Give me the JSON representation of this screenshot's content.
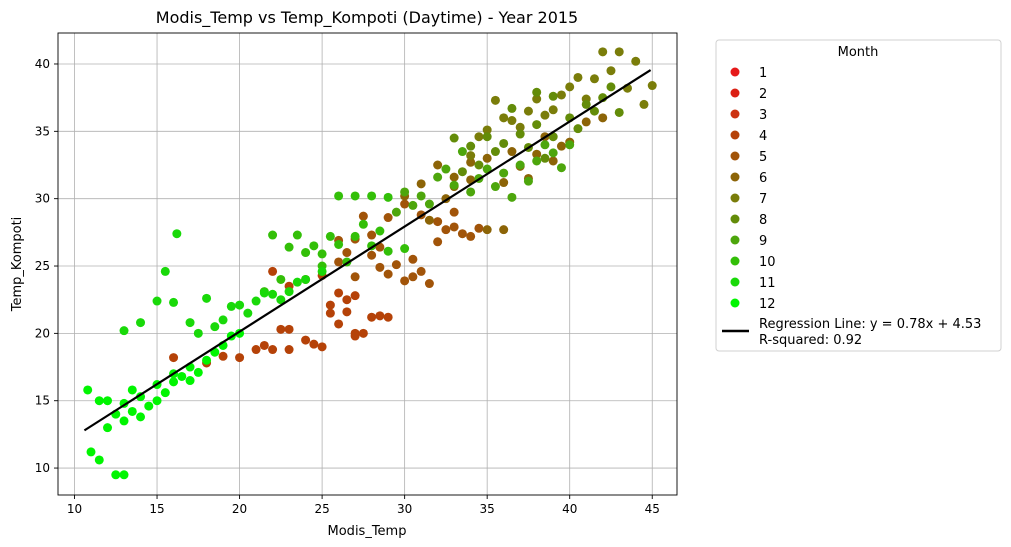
{
  "chart_data": {
    "type": "scatter",
    "title": "Modis_Temp vs Temp_Kompoti (Daytime) - Year 2015",
    "xlabel": "Modis_Temp",
    "ylabel": "Temp_Kompoti",
    "xlim": [
      9,
      46.5
    ],
    "ylim": [
      8,
      42.3
    ],
    "xticks": [
      10,
      15,
      20,
      25,
      30,
      35,
      40,
      45
    ],
    "yticks": [
      10,
      15,
      20,
      25,
      30,
      35,
      40
    ],
    "grid": true,
    "legend": {
      "title": "Month",
      "placement": "outside-right"
    },
    "series": [
      {
        "name": "1",
        "color": "#e6191a",
        "points": []
      },
      {
        "name": "2",
        "color": "#db2014",
        "points": []
      },
      {
        "name": "3",
        "color": "#cc3312",
        "points": []
      },
      {
        "name": "4",
        "color": "#b54208",
        "points": [
          [
            16,
            18.2
          ],
          [
            18,
            17.8
          ],
          [
            19,
            18.3
          ],
          [
            20,
            18.2
          ],
          [
            21,
            18.8
          ],
          [
            21.5,
            19.1
          ],
          [
            22,
            18.8
          ],
          [
            22.5,
            20.3
          ],
          [
            23,
            20.3
          ],
          [
            23,
            18.8
          ],
          [
            24,
            19.5
          ],
          [
            24.5,
            19.2
          ],
          [
            25,
            19.0
          ],
          [
            25.5,
            21.5
          ],
          [
            26,
            20.7
          ],
          [
            26.5,
            21.6
          ],
          [
            27,
            20.0
          ],
          [
            27,
            19.8
          ],
          [
            27.5,
            20.0
          ],
          [
            28,
            21.2
          ],
          [
            28.5,
            21.3
          ],
          [
            29,
            21.2
          ],
          [
            24,
            24.0
          ],
          [
            25,
            24.3
          ],
          [
            26,
            23.0
          ],
          [
            26.5,
            22.5
          ],
          [
            27,
            22.8
          ],
          [
            22,
            24.6
          ],
          [
            23,
            23.5
          ],
          [
            25.5,
            22.1
          ]
        ]
      },
      {
        "name": "5",
        "color": "#a15409",
        "points": [
          [
            26,
            26.9
          ],
          [
            27,
            27.0
          ],
          [
            27.5,
            28.7
          ],
          [
            28,
            27.3
          ],
          [
            28.5,
            24.9
          ],
          [
            29,
            24.4
          ],
          [
            29.5,
            25.1
          ],
          [
            30,
            23.9
          ],
          [
            30.5,
            24.2
          ],
          [
            31,
            24.6
          ],
          [
            31.5,
            23.7
          ],
          [
            32,
            26.8
          ],
          [
            32.5,
            27.7
          ],
          [
            33,
            27.9
          ],
          [
            33.5,
            27.4
          ],
          [
            34,
            27.2
          ],
          [
            34.5,
            27.8
          ],
          [
            27,
            24.2
          ],
          [
            26,
            25.3
          ],
          [
            28.5,
            26.4
          ],
          [
            29,
            28.6
          ],
          [
            30,
            29.6
          ],
          [
            31,
            28.8
          ],
          [
            32,
            28.3
          ],
          [
            33,
            29.0
          ],
          [
            30.5,
            25.5
          ],
          [
            26.5,
            26.0
          ],
          [
            28,
            25.8
          ]
        ]
      },
      {
        "name": "6",
        "color": "#8c6407",
        "points": [
          [
            30,
            30.2
          ],
          [
            31,
            31.1
          ],
          [
            32,
            32.5
          ],
          [
            33,
            31.6
          ],
          [
            34,
            32.7
          ],
          [
            35,
            33.0
          ],
          [
            36,
            31.2
          ],
          [
            37,
            32.4
          ],
          [
            38,
            33.3
          ],
          [
            39,
            32.8
          ],
          [
            40,
            34.2
          ],
          [
            41,
            35.7
          ],
          [
            42,
            36.0
          ],
          [
            35,
            27.7
          ],
          [
            36,
            27.7
          ],
          [
            33,
            30.9
          ],
          [
            34,
            31.4
          ],
          [
            31.5,
            28.4
          ],
          [
            37.5,
            31.5
          ],
          [
            38.5,
            34.6
          ],
          [
            36.5,
            33.5
          ],
          [
            39.5,
            33.9
          ],
          [
            32.5,
            30.0
          ]
        ]
      },
      {
        "name": "7",
        "color": "#7a7d0a",
        "points": [
          [
            34,
            33.2
          ],
          [
            35,
            35.1
          ],
          [
            36,
            36.0
          ],
          [
            37,
            35.3
          ],
          [
            38,
            37.4
          ],
          [
            39,
            36.6
          ],
          [
            40,
            38.3
          ],
          [
            41,
            37.4
          ],
          [
            42,
            40.9
          ],
          [
            43,
            40.9
          ],
          [
            44,
            40.2
          ],
          [
            45,
            38.4
          ],
          [
            44.5,
            37.0
          ],
          [
            42.5,
            39.5
          ],
          [
            40.5,
            39.0
          ],
          [
            35.5,
            37.3
          ],
          [
            36.5,
            35.8
          ],
          [
            38.5,
            36.2
          ],
          [
            41.5,
            38.9
          ],
          [
            43.5,
            38.2
          ],
          [
            39.5,
            37.7
          ],
          [
            37.5,
            36.5
          ],
          [
            34.5,
            34.6
          ]
        ]
      },
      {
        "name": "8",
        "color": "#638c09",
        "points": [
          [
            33,
            34.5
          ],
          [
            34,
            33.9
          ],
          [
            35,
            34.6
          ],
          [
            36,
            34.1
          ],
          [
            37,
            34.8
          ],
          [
            38,
            35.5
          ],
          [
            39,
            34.6
          ],
          [
            40,
            36.0
          ],
          [
            41,
            37.0
          ],
          [
            42,
            37.5
          ],
          [
            43,
            36.4
          ],
          [
            39,
            37.6
          ],
          [
            38,
            37.9
          ],
          [
            36.5,
            36.7
          ],
          [
            35.5,
            33.5
          ],
          [
            37.5,
            33.8
          ],
          [
            40.5,
            35.2
          ],
          [
            34.5,
            32.5
          ],
          [
            33.5,
            32.0
          ],
          [
            41.5,
            36.5
          ],
          [
            42.5,
            38.3
          ],
          [
            38.5,
            33.0
          ]
        ]
      },
      {
        "name": "9",
        "color": "#4da60c",
        "points": [
          [
            30,
            30.5
          ],
          [
            31,
            30.2
          ],
          [
            32,
            31.6
          ],
          [
            33,
            31.0
          ],
          [
            34,
            30.5
          ],
          [
            35,
            32.2
          ],
          [
            36,
            31.9
          ],
          [
            37,
            32.5
          ],
          [
            38,
            32.8
          ],
          [
            39,
            33.4
          ],
          [
            40,
            34.0
          ],
          [
            32.5,
            32.2
          ],
          [
            33.5,
            33.5
          ],
          [
            34.5,
            31.5
          ],
          [
            35.5,
            30.9
          ],
          [
            36.5,
            30.1
          ],
          [
            37.5,
            31.3
          ],
          [
            31.5,
            29.6
          ],
          [
            30.5,
            29.5
          ],
          [
            29.5,
            29.0
          ],
          [
            38.5,
            34.0
          ],
          [
            39.5,
            32.3
          ]
        ]
      },
      {
        "name": "10",
        "color": "#33bf08",
        "points": [
          [
            22,
            27.3
          ],
          [
            23,
            26.4
          ],
          [
            24,
            26.0
          ],
          [
            25,
            25.9
          ],
          [
            26,
            26.6
          ],
          [
            27,
            27.2
          ],
          [
            28,
            26.5
          ],
          [
            29,
            26.1
          ],
          [
            30,
            26.3
          ],
          [
            26,
            30.2
          ],
          [
            27,
            30.2
          ],
          [
            28,
            30.2
          ],
          [
            29,
            30.1
          ],
          [
            25.5,
            27.2
          ],
          [
            24.5,
            26.5
          ],
          [
            23.5,
            27.3
          ],
          [
            22.5,
            24.0
          ],
          [
            21.5,
            23.1
          ],
          [
            27.5,
            28.1
          ],
          [
            28.5,
            27.6
          ],
          [
            26.5,
            25.3
          ],
          [
            25,
            25.0
          ]
        ]
      },
      {
        "name": "11",
        "color": "#19d909",
        "points": [
          [
            13,
            20.2
          ],
          [
            14,
            20.8
          ],
          [
            15,
            22.4
          ],
          [
            16,
            22.3
          ],
          [
            16.2,
            27.4
          ],
          [
            17,
            20.8
          ],
          [
            18,
            22.6
          ],
          [
            19,
            21.0
          ],
          [
            20,
            22.1
          ],
          [
            21,
            22.4
          ],
          [
            22,
            22.9
          ],
          [
            23,
            23.1
          ],
          [
            24,
            24.0
          ],
          [
            25,
            24.6
          ],
          [
            15.5,
            24.6
          ],
          [
            19.5,
            22.0
          ],
          [
            20.5,
            21.5
          ],
          [
            21.5,
            23.0
          ],
          [
            22.5,
            22.5
          ],
          [
            18.5,
            20.5
          ],
          [
            17.5,
            20.0
          ],
          [
            23.5,
            23.8
          ]
        ]
      },
      {
        "name": "12",
        "color": "#00f500",
        "points": [
          [
            10.8,
            15.8
          ],
          [
            11,
            11.2
          ],
          [
            11.5,
            10.6
          ],
          [
            12,
            13.0
          ],
          [
            12.5,
            9.5
          ],
          [
            13,
            9.5
          ],
          [
            13,
            13.5
          ],
          [
            13.5,
            14.2
          ],
          [
            14,
            13.8
          ],
          [
            14.5,
            14.6
          ],
          [
            15,
            15.0
          ],
          [
            15.5,
            15.6
          ],
          [
            16,
            16.4
          ],
          [
            16.5,
            16.8
          ],
          [
            17,
            17.5
          ],
          [
            17.5,
            17.1
          ],
          [
            18,
            18.0
          ],
          [
            18.5,
            18.6
          ],
          [
            19,
            19.1
          ],
          [
            19.5,
            19.8
          ],
          [
            20,
            20.0
          ],
          [
            11.5,
            15.0
          ],
          [
            12,
            15.0
          ],
          [
            13,
            14.8
          ],
          [
            14,
            15.3
          ],
          [
            15,
            16.2
          ],
          [
            16,
            17.0
          ],
          [
            17,
            16.5
          ],
          [
            13.5,
            15.8
          ],
          [
            12.5,
            14.0
          ]
        ]
      }
    ],
    "regression": {
      "label": "Regression Line: y = 0.78x + 4.53",
      "r2_label": "R-squared: 0.92",
      "slope": 0.78,
      "intercept": 4.53,
      "x_range": [
        10.6,
        44.9
      ],
      "color": "#000000"
    }
  }
}
